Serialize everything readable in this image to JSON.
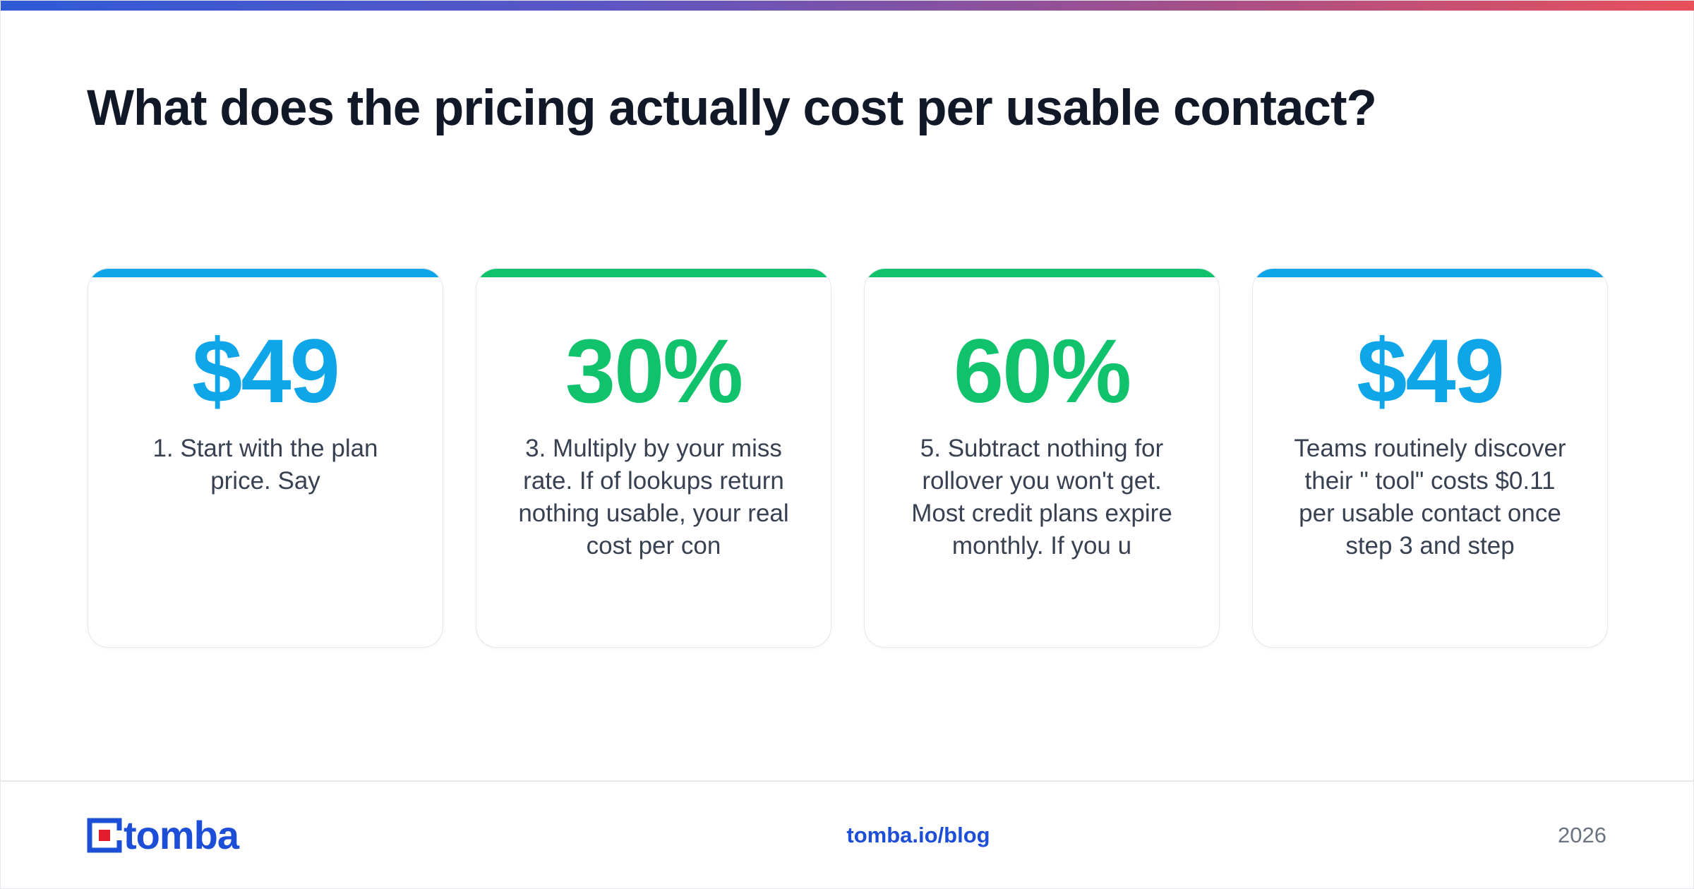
{
  "header": {
    "title": "What does the pricing actually cost per usable contact?"
  },
  "colors": {
    "blue": "#0ea5e9",
    "green": "#10c26b",
    "brand": "#1d4ed8",
    "logo_red": "#e11d2e"
  },
  "cards": [
    {
      "value": "$49",
      "text": "1. Start with the plan price. Say",
      "accent": "#0ea5e9"
    },
    {
      "value": "30%",
      "text": "3. Multiply by your miss rate. If of lookups return nothing usable, your real cost per con",
      "accent": "#10c26b"
    },
    {
      "value": "60%",
      "text": "5. Subtract nothing for rollover you won't get. Most credit plans expire monthly. If you u",
      "accent": "#10c26b"
    },
    {
      "value": "$49",
      "text": "Teams routinely discover their \" tool\" costs $0.11 per usable contact once step 3 and step",
      "accent": "#0ea5e9"
    }
  ],
  "footer": {
    "logo_text": "tomba",
    "logo_icon": "tomba-logo-icon",
    "url": "tomba.io/blog",
    "year": "2026"
  }
}
